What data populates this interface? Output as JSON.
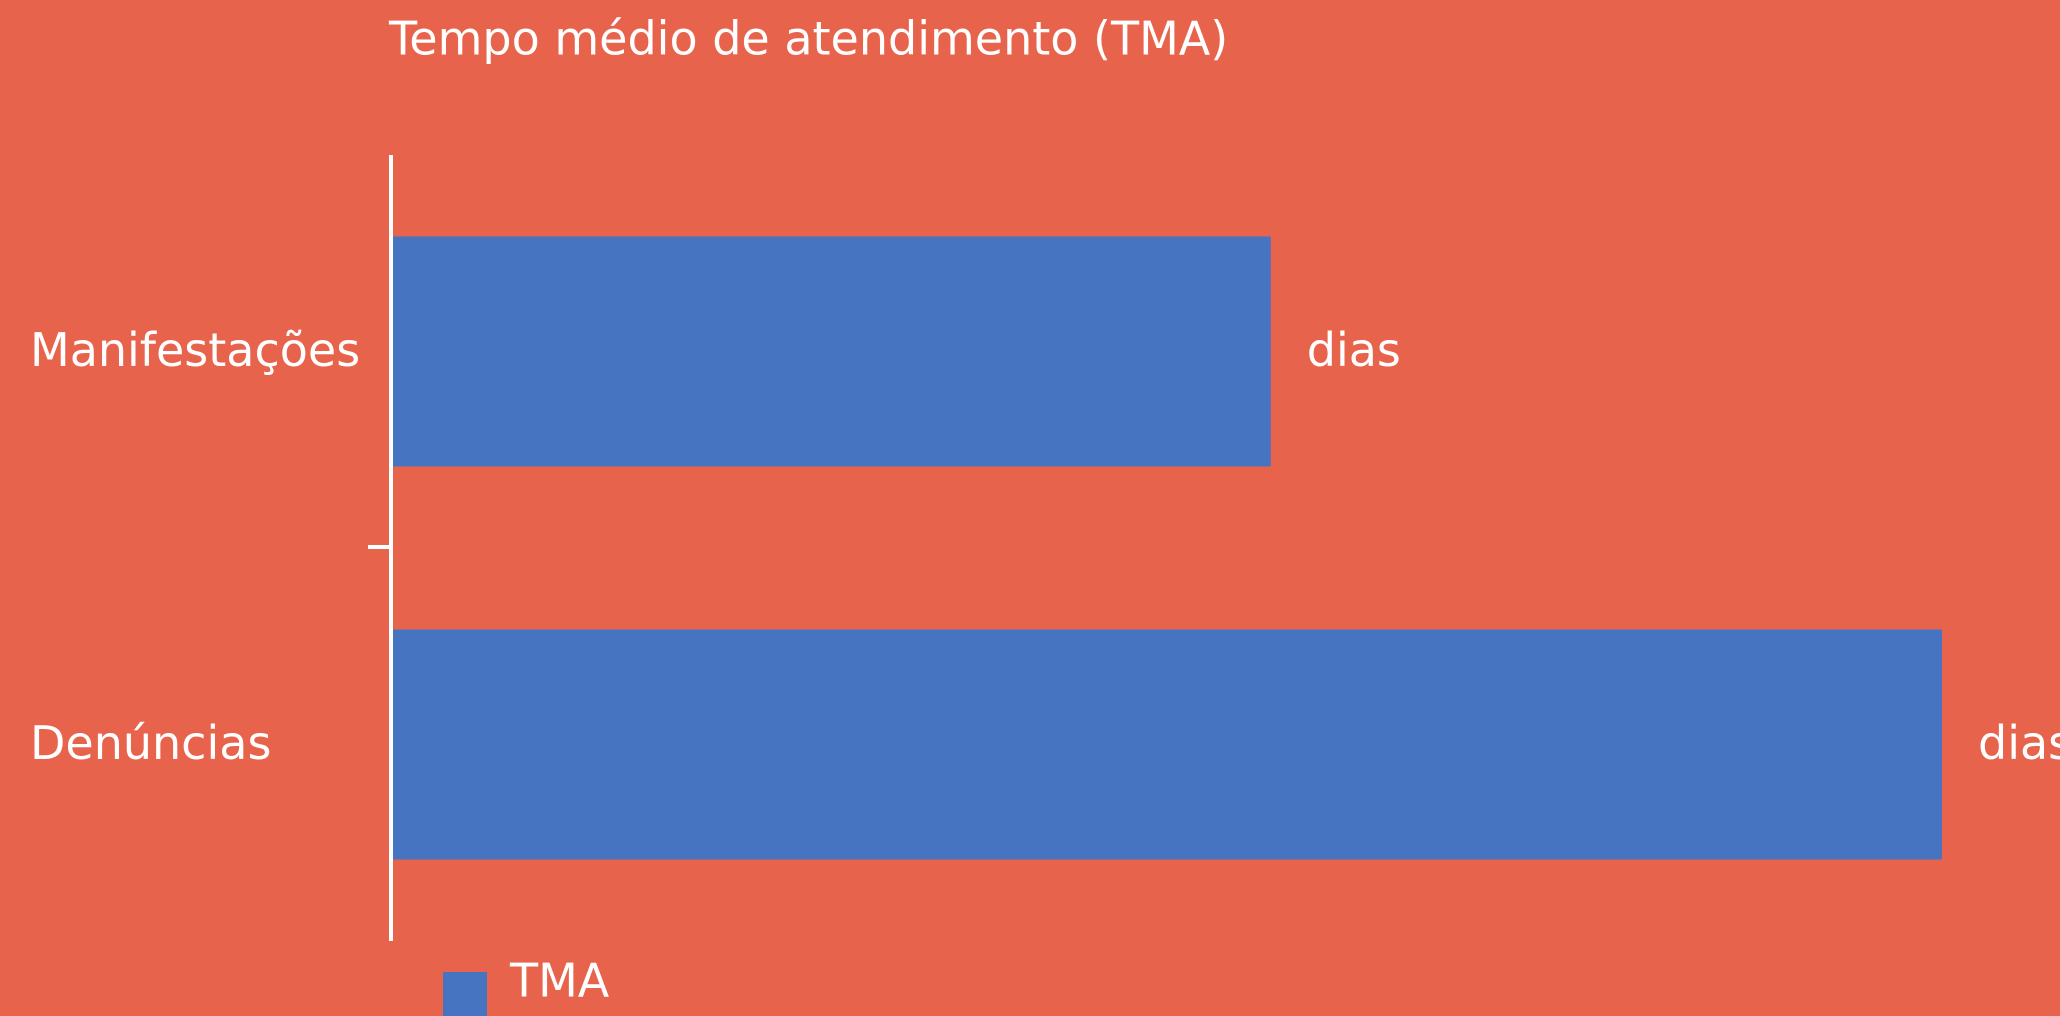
{
  "chart_data": {
    "type": "bar",
    "orientation": "horizontal",
    "title": "Tempo médio de atendimento (TMA)",
    "categories": [
      "Manifestações",
      "Denúncias"
    ],
    "series": [
      {
        "name": "TMA",
        "color": "#4674c1",
        "values": [
          17,
          30
        ],
        "value_labels": [
          "dias",
          "dias"
        ]
      }
    ],
    "legend": "bottom"
  }
}
